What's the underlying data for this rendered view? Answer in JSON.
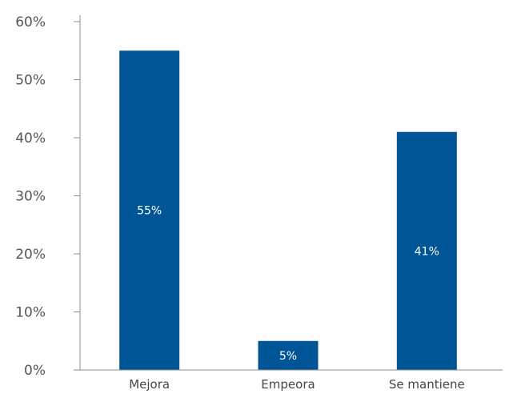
{
  "chart_data": {
    "type": "bar",
    "categories": [
      "Mejora",
      "Empeora",
      "Se mantiene"
    ],
    "values": [
      55,
      5,
      41
    ],
    "data_labels": [
      "55%",
      "5%",
      "41%"
    ],
    "title": "",
    "xlabel": "",
    "ylabel": "",
    "ylim": [
      0,
      60
    ],
    "y_ticks": [
      {
        "value": 0,
        "label": "0%"
      },
      {
        "value": 10,
        "label": "10%"
      },
      {
        "value": 20,
        "label": "20%"
      },
      {
        "value": 30,
        "label": "30%"
      },
      {
        "value": 40,
        "label": "40%"
      },
      {
        "value": 50,
        "label": "50%"
      },
      {
        "value": 60,
        "label": "60%"
      }
    ],
    "grid": false,
    "legend": "none",
    "colors": {
      "bar": "#005596",
      "axis": "#8c8c8c",
      "data_label": "#ffffff"
    }
  }
}
